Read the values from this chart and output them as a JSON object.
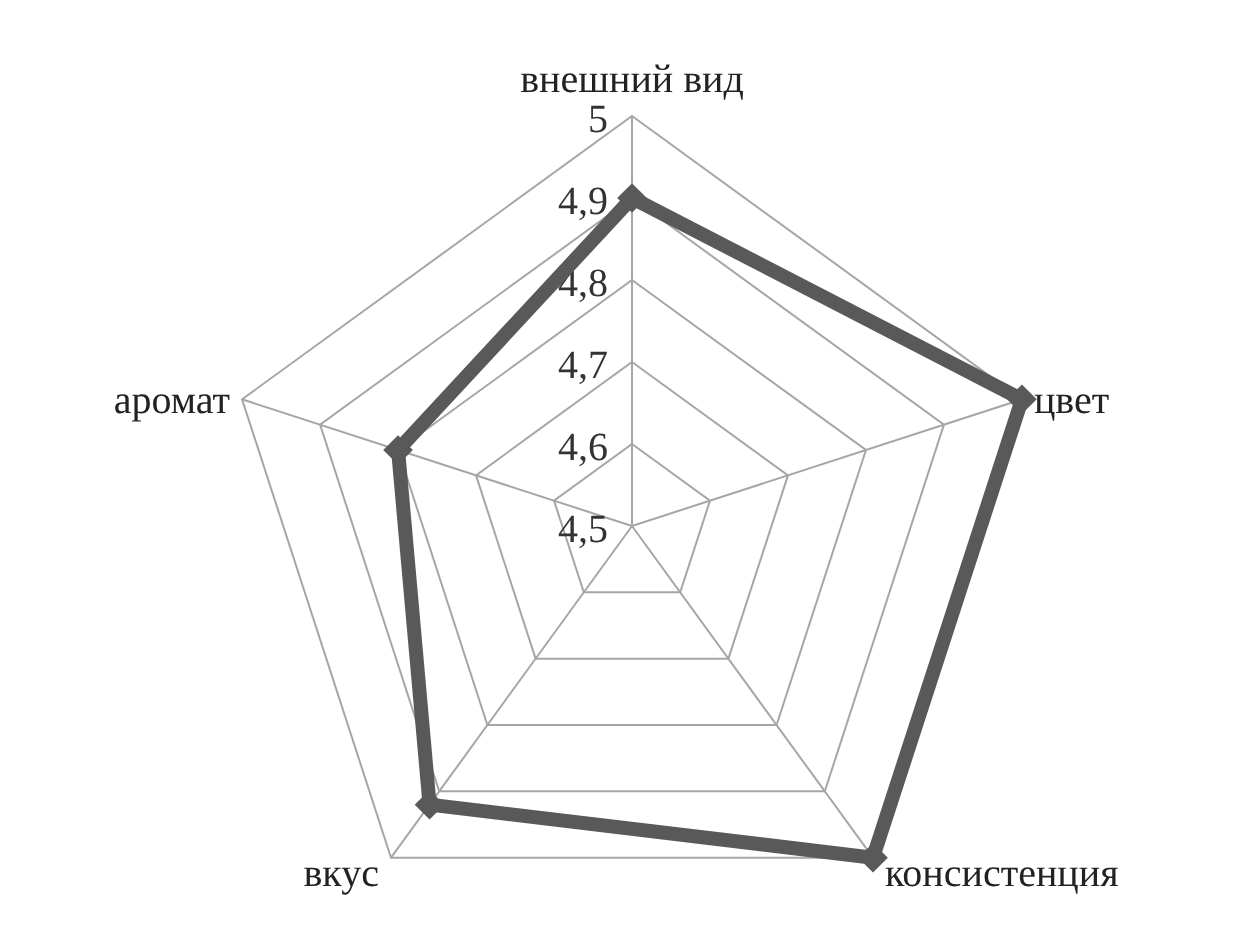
{
  "chart_data": {
    "type": "radar",
    "categories": [
      "внешний вид",
      "цвет",
      "консистенция",
      "вкус",
      "аромат"
    ],
    "series": [
      {
        "color": "#595959",
        "values": [
          4.9,
          5.0,
          5.0,
          4.92,
          4.8
        ]
      }
    ],
    "ylim": [
      4.5,
      5
    ],
    "yticks": [
      {
        "value": 4.5,
        "label": "4,5"
      },
      {
        "value": 4.6,
        "label": "4,6"
      },
      {
        "value": 4.7,
        "label": "4,7"
      },
      {
        "value": 4.8,
        "label": "4,8"
      },
      {
        "value": 4.9,
        "label": "4,9"
      },
      {
        "value": 5,
        "label": "5"
      }
    ],
    "grid": true,
    "marker": "diamond",
    "line_style": "solid"
  }
}
